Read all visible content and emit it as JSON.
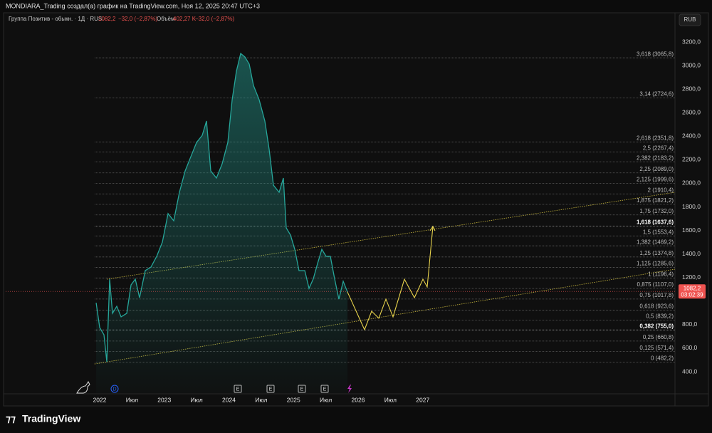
{
  "header": {
    "title": "MONDIARA_Trading создал(а) график на TradingView.com, Ноя 12, 2025 20:47 UTC+3",
    "symbol": "Группа Позитив - обыкн. · 1Д · RUS",
    "price": "1082,2",
    "change": "−32,0 (−2,87%)",
    "volume_label": "Объём",
    "volume": "402,27 K",
    "volume_change": "−32,0 (−2,87%)",
    "currency": "RUB"
  },
  "events": [
    "D",
    "E",
    "E",
    "E",
    "E"
  ],
  "logo": "TradingView",
  "chart_data": {
    "type": "line",
    "x": [
      2021.945,
      2022.0,
      2022.066,
      2022.11,
      2022.154,
      2022.198,
      2022.264,
      2022.331,
      2022.419,
      2022.485,
      2022.551,
      2022.617,
      2022.705,
      2022.793,
      2022.882,
      2022.97,
      2023.058,
      2023.146,
      2023.234,
      2023.322,
      2023.41,
      2023.499,
      2023.587,
      2023.653,
      2023.719,
      2023.807,
      2023.895,
      2023.983,
      2024.05,
      2024.116,
      2024.182,
      2024.248,
      2024.314,
      2024.38,
      2024.468,
      2024.556,
      2024.623,
      2024.689,
      2024.777,
      2024.843,
      2024.887,
      2024.953,
      2025.019,
      2025.085,
      2025.174,
      2025.24,
      2025.306,
      2025.372,
      2025.438,
      2025.504,
      2025.57,
      2025.636,
      2025.702,
      2025.769,
      2025.835
    ],
    "values": [
      986,
      775,
      714,
      485,
      1186,
      896,
      956,
      866,
      896,
      1138,
      1186,
      1029,
      1259,
      1289,
      1380,
      1501,
      1743,
      1682,
      1924,
      2105,
      2226,
      2347,
      2408,
      2529,
      2105,
      2045,
      2166,
      2347,
      2710,
      2952,
      3103,
      3073,
      3013,
      2831,
      2710,
      2529,
      2287,
      1984,
      1924,
      2045,
      1622,
      1561,
      1440,
      1259,
      1259,
      1108,
      1189,
      1319,
      1440,
      1380,
      1380,
      1189,
      1017,
      1168,
      1077
    ],
    "color": "#26a69a",
    "projection": {
      "x": [
        2025.835,
        2026.099,
        2026.209,
        2026.32,
        2026.43,
        2026.54,
        2026.716,
        2026.871,
        2027.003,
        2027.069,
        2027.157
      ],
      "values": [
        1077,
        757,
        914,
        854,
        1017,
        866,
        1186,
        1029,
        1186,
        1120,
        1634
      ],
      "color": "#e8d44d"
    },
    "trendlines": [
      {
        "x": [
          2022.11,
          2030.904
        ],
        "values": [
          1186,
          1924
        ]
      },
      {
        "x": [
          2021.92,
          2030.904
        ],
        "values": [
          466,
          1271
        ]
      }
    ],
    "fib_levels": [
      {
        "value": 3065.8,
        "label": "3,618 (3065,8)"
      },
      {
        "value": 2724.6,
        "label": "3,14 (2724,6)"
      },
      {
        "value": 2351.8,
        "label": "2,618 (2351,8)"
      },
      {
        "value": 2267.4,
        "label": "2,5 (2267,4)"
      },
      {
        "value": 2183.2,
        "label": "2,382 (2183,2)"
      },
      {
        "value": 2089.0,
        "label": "2,25 (2089,0)"
      },
      {
        "value": 1999.6,
        "label": "2,125 (1999,6)"
      },
      {
        "value": 1910.4,
        "label": "2 (1910,4)"
      },
      {
        "value": 1821.2,
        "label": "1,875 (1821,2)"
      },
      {
        "value": 1732.0,
        "label": "1,75 (1732,0)"
      },
      {
        "value": 1637.6,
        "label": "1,618 (1637,6)"
      },
      {
        "value": 1553.4,
        "label": "1,5 (1553,4)"
      },
      {
        "value": 1469.2,
        "label": "1,382 (1469,2)"
      },
      {
        "value": 1374.8,
        "label": "1,25 (1374,8)"
      },
      {
        "value": 1285.6,
        "label": "1,125 (1285,6)"
      },
      {
        "value": 1196.4,
        "label": "1 (1196,4)"
      },
      {
        "value": 1107.0,
        "label": "0,875 (1107,0)"
      },
      {
        "value": 1017.8,
        "label": "0,75 (1017,8)"
      },
      {
        "value": 923.6,
        "label": "0,618 (923,6)"
      },
      {
        "value": 839.2,
        "label": "0,5 (839,2)"
      },
      {
        "value": 755.0,
        "label": "0,382 (755,0)"
      },
      {
        "value": 660.8,
        "label": "0,25 (660,8)"
      },
      {
        "value": 571.4,
        "label": "0,125 (571,4)"
      },
      {
        "value": 482.2,
        "label": "0 (482,2)"
      }
    ],
    "last_price": {
      "value": 1082.2,
      "label": "1082,2",
      "countdown": "03:02:39"
    },
    "xlim": [
      2020.545,
      2030.904
    ],
    "ylim": [
      218.6,
      3448
    ],
    "xticks": [
      2022,
      {
        "value": 2022.5,
        "label": "Июл"
      },
      2023,
      {
        "value": 2023.5,
        "label": "Июл"
      },
      2024,
      {
        "value": 2024.5,
        "label": "Июл"
      },
      2025,
      {
        "value": 2025.5,
        "label": "Июл"
      },
      2026,
      {
        "value": 2026.5,
        "label": "Июл"
      },
      2027
    ],
    "yticks": [
      {
        "value": 400,
        "label": "400,0"
      },
      {
        "value": 600,
        "label": "600,0"
      },
      {
        "value": 800,
        "label": "800,0"
      },
      {
        "value": 1200,
        "label": "1200,0"
      },
      {
        "value": 1400,
        "label": "1400,0"
      },
      {
        "value": 1600,
        "label": "1600,0"
      },
      {
        "value": 1800,
        "label": "1800,0"
      },
      {
        "value": 2000,
        "label": "2000,0"
      },
      {
        "value": 2200,
        "label": "2200,0"
      },
      {
        "value": 2400,
        "label": "2400,0"
      },
      {
        "value": 2600,
        "label": "2600,0"
      },
      {
        "value": 2800,
        "label": "2800,0"
      },
      {
        "value": 3000,
        "label": "3000,0"
      },
      {
        "value": 3200,
        "label": "3200,0"
      }
    ]
  }
}
